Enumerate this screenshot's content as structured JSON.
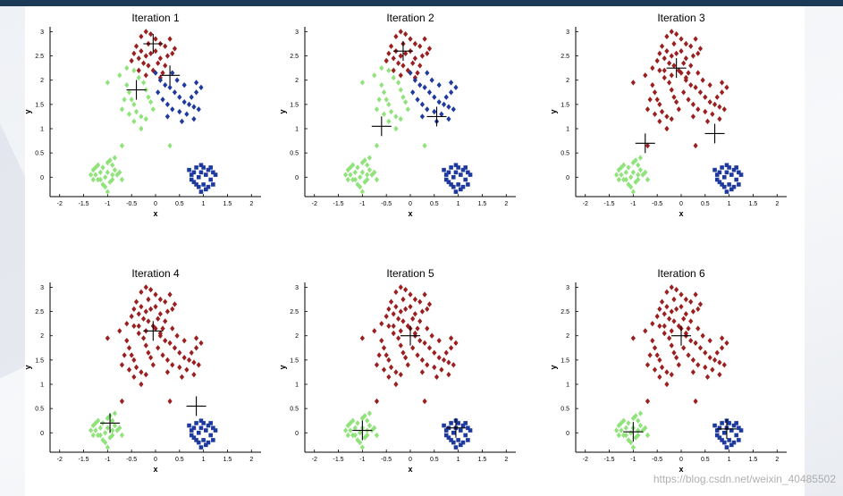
{
  "watermark": "https://blog.csdn.net/weixin_40485502",
  "colors": {
    "cluster_green": "#8fe37a",
    "cluster_red": "#9b1f1f",
    "cluster_blue": "#1e3a9e",
    "centroid": "#000000",
    "header": "#1b3a57"
  },
  "chart_data": [
    {
      "type": "scatter",
      "title": "Iteration 1",
      "xlabel": "x",
      "ylabel": "y",
      "xlim": [
        -2.2,
        2.2
      ],
      "ylim": [
        -0.4,
        3.1
      ],
      "xticks": [
        "-2",
        "-1.5",
        "-1",
        "-0.5",
        "0",
        "0.5",
        "1",
        "1.5",
        "2"
      ],
      "yticks": [
        "0",
        "0.5",
        "1",
        "1.5",
        "2",
        "2.5",
        "3"
      ],
      "assignment": {
        "lower_left": "green",
        "lower_right": "blue",
        "upper_red": "red",
        "upper_mid_green": "green",
        "upper_mid_blue": "blue"
      },
      "centroids": [
        [
          -0.05,
          2.75
        ],
        [
          0.3,
          2.1
        ],
        [
          -0.4,
          1.8
        ]
      ]
    },
    {
      "type": "scatter",
      "title": "Iteration 2",
      "xlabel": "x",
      "ylabel": "y",
      "xlim": [
        -2.2,
        2.2
      ],
      "ylim": [
        -0.4,
        3.1
      ],
      "xticks": [
        "-2",
        "-1.5",
        "-1",
        "-0.5",
        "0",
        "0.5",
        "1",
        "1.5",
        "2"
      ],
      "yticks": [
        "0",
        "0.5",
        "1",
        "1.5",
        "2",
        "2.5",
        "3"
      ],
      "assignment": {
        "lower_left": "green",
        "lower_right": "blue",
        "upper_red": "red",
        "upper_mid_green": "green",
        "upper_mid_blue": "blue"
      },
      "centroids": [
        [
          -0.15,
          2.6
        ],
        [
          0.55,
          1.25
        ],
        [
          -0.6,
          1.05
        ]
      ]
    },
    {
      "type": "scatter",
      "title": "Iteration 3",
      "xlabel": "x",
      "ylabel": "y",
      "xlim": [
        -2.2,
        2.2
      ],
      "ylim": [
        -0.4,
        3.1
      ],
      "xticks": [
        "-2",
        "-1.5",
        "-1",
        "-0.5",
        "0",
        "0.5",
        "1",
        "1.5",
        "2"
      ],
      "yticks": [
        "0",
        "0.5",
        "1",
        "1.5",
        "2",
        "2.5",
        "3"
      ],
      "assignment": {
        "lower_left": "green",
        "lower_right": "blue",
        "upper_red": "red",
        "upper_mid_green": "red",
        "upper_mid_blue": "red"
      },
      "centroids": [
        [
          -0.1,
          2.25
        ],
        [
          0.7,
          0.9
        ],
        [
          -0.75,
          0.7
        ]
      ]
    },
    {
      "type": "scatter",
      "title": "Iteration 4",
      "xlabel": "x",
      "ylabel": "y",
      "xlim": [
        -2.2,
        2.2
      ],
      "ylim": [
        -0.4,
        3.1
      ],
      "xticks": [
        "-2",
        "-1.5",
        "-1",
        "-0.5",
        "0",
        "0.5",
        "1",
        "1.5",
        "2"
      ],
      "yticks": [
        "0",
        "0.5",
        "1",
        "1.5",
        "2",
        "2.5",
        "3"
      ],
      "assignment": {
        "lower_left": "green",
        "lower_right": "blue",
        "upper_red": "red",
        "upper_mid_green": "red",
        "upper_mid_blue": "red"
      },
      "centroids": [
        [
          -0.05,
          2.1
        ],
        [
          0.85,
          0.55
        ],
        [
          -0.95,
          0.2
        ]
      ]
    },
    {
      "type": "scatter",
      "title": "Iteration 5",
      "xlabel": "x",
      "ylabel": "y",
      "xlim": [
        -2.2,
        2.2
      ],
      "ylim": [
        -0.4,
        3.1
      ],
      "xticks": [
        "-2",
        "-1.5",
        "-1",
        "-0.5",
        "0",
        "0.5",
        "1",
        "1.5",
        "2"
      ],
      "yticks": [
        "0",
        "0.5",
        "1",
        "1.5",
        "2",
        "2.5",
        "3"
      ],
      "assignment": {
        "lower_left": "green",
        "lower_right": "blue",
        "upper_red": "red",
        "upper_mid_green": "red",
        "upper_mid_blue": "red"
      },
      "centroids": [
        [
          0.0,
          2.0
        ],
        [
          0.95,
          0.1
        ],
        [
          -1.0,
          0.05
        ]
      ]
    },
    {
      "type": "scatter",
      "title": "Iteration 6",
      "xlabel": "x",
      "ylabel": "y",
      "xlim": [
        -2.2,
        2.2
      ],
      "ylim": [
        -0.4,
        3.1
      ],
      "xticks": [
        "-2",
        "-1.5",
        "-1",
        "-0.5",
        "0",
        "0.5",
        "1",
        "1.5",
        "2"
      ],
      "yticks": [
        "0",
        "0.5",
        "1",
        "1.5",
        "2",
        "2.5",
        "3"
      ],
      "assignment": {
        "lower_left": "green",
        "lower_right": "blue",
        "upper_red": "red",
        "upper_mid_green": "red",
        "upper_mid_blue": "red"
      },
      "centroids": [
        [
          0.0,
          2.0
        ],
        [
          0.95,
          0.08
        ],
        [
          -1.0,
          0.02
        ]
      ]
    }
  ],
  "points": {
    "lower_left": [
      [
        -1.3,
        0.15
      ],
      [
        -1.25,
        0.05
      ],
      [
        -1.2,
        -0.05
      ],
      [
        -1.15,
        0.1
      ],
      [
        -1.1,
        0.2
      ],
      [
        -1.05,
        0.0
      ],
      [
        -1.0,
        0.3
      ],
      [
        -0.95,
        -0.1
      ],
      [
        -0.9,
        0.05
      ],
      [
        -0.85,
        0.15
      ],
      [
        -1.2,
        0.25
      ],
      [
        -1.1,
        -0.15
      ],
      [
        -1.0,
        0.1
      ],
      [
        -0.95,
        0.35
      ],
      [
        -0.9,
        -0.05
      ],
      [
        -1.05,
        -0.2
      ],
      [
        -0.8,
        0.05
      ],
      [
        -0.75,
        0.1
      ],
      [
        -1.15,
        -0.05
      ],
      [
        -1.25,
        0.2
      ],
      [
        -1.0,
        -0.3
      ],
      [
        -0.85,
        0.4
      ],
      [
        -0.9,
        0.25
      ],
      [
        -1.3,
        -0.05
      ],
      [
        -0.7,
        -0.05
      ],
      [
        -1.35,
        0.05
      ]
    ],
    "lower_right": [
      [
        0.7,
        0.15
      ],
      [
        0.75,
        0.05
      ],
      [
        0.8,
        -0.1
      ],
      [
        0.85,
        0.2
      ],
      [
        0.9,
        0.0
      ],
      [
        0.95,
        0.1
      ],
      [
        1.0,
        -0.15
      ],
      [
        1.05,
        0.05
      ],
      [
        1.1,
        0.15
      ],
      [
        1.15,
        -0.05
      ],
      [
        1.2,
        0.1
      ],
      [
        0.8,
        0.1
      ],
      [
        0.9,
        -0.2
      ],
      [
        1.0,
        0.2
      ],
      [
        1.1,
        -0.2
      ],
      [
        1.2,
        -0.15
      ],
      [
        0.75,
        -0.05
      ],
      [
        0.95,
        -0.3
      ],
      [
        1.05,
        -0.25
      ],
      [
        1.15,
        0.2
      ],
      [
        0.85,
        -0.15
      ],
      [
        1.25,
        0.05
      ],
      [
        0.95,
        0.25
      ]
    ],
    "upper_red": [
      [
        -0.3,
        2.9
      ],
      [
        -0.2,
        3.0
      ],
      [
        -0.1,
        2.95
      ],
      [
        0.0,
        2.85
      ],
      [
        0.1,
        2.75
      ],
      [
        0.2,
        2.7
      ],
      [
        -0.4,
        2.7
      ],
      [
        -0.3,
        2.6
      ],
      [
        -0.2,
        2.5
      ],
      [
        -0.1,
        2.55
      ],
      [
        0.0,
        2.6
      ],
      [
        0.1,
        2.45
      ],
      [
        0.25,
        2.5
      ],
      [
        -0.35,
        2.45
      ],
      [
        -0.45,
        2.55
      ],
      [
        -0.25,
        2.35
      ],
      [
        -0.15,
        2.3
      ],
      [
        0.05,
        2.35
      ],
      [
        0.2,
        2.3
      ],
      [
        -0.05,
        2.2
      ],
      [
        0.15,
        2.15
      ],
      [
        0.35,
        2.55
      ],
      [
        0.3,
        2.85
      ],
      [
        -0.5,
        2.4
      ],
      [
        -0.15,
        2.75
      ],
      [
        0.4,
        2.65
      ],
      [
        -0.35,
        2.2
      ],
      [
        0.1,
        2.05
      ],
      [
        -0.2,
        2.1
      ]
    ],
    "upper_mid_green": [
      [
        -1.0,
        1.95
      ],
      [
        -0.75,
        2.1
      ],
      [
        -0.6,
        1.9
      ],
      [
        -0.55,
        1.75
      ],
      [
        -0.5,
        1.6
      ],
      [
        -0.45,
        1.5
      ],
      [
        -0.4,
        1.35
      ],
      [
        -0.3,
        1.25
      ],
      [
        -0.35,
        2.05
      ],
      [
        -0.25,
        1.95
      ],
      [
        -0.2,
        1.8
      ],
      [
        -0.15,
        1.65
      ],
      [
        -0.1,
        1.55
      ],
      [
        -0.05,
        1.4
      ],
      [
        -0.65,
        1.6
      ],
      [
        -0.7,
        1.4
      ],
      [
        -0.55,
        1.3
      ],
      [
        -0.45,
        1.15
      ],
      [
        -0.3,
        1.0
      ],
      [
        -0.2,
        1.2
      ],
      [
        -0.6,
        2.25
      ],
      [
        -0.45,
        2.2
      ],
      [
        0.3,
        0.65
      ],
      [
        -0.7,
        0.65
      ]
    ],
    "upper_mid_blue": [
      [
        0.0,
        2.15
      ],
      [
        0.1,
        2.0
      ],
      [
        0.2,
        1.9
      ],
      [
        0.3,
        1.85
      ],
      [
        0.4,
        1.75
      ],
      [
        0.5,
        1.65
      ],
      [
        0.6,
        1.55
      ],
      [
        0.7,
        1.5
      ],
      [
        0.8,
        1.45
      ],
      [
        0.9,
        1.4
      ],
      [
        0.05,
        1.75
      ],
      [
        0.15,
        1.6
      ],
      [
        0.25,
        1.5
      ],
      [
        0.35,
        1.4
      ],
      [
        0.5,
        1.35
      ],
      [
        0.65,
        1.3
      ],
      [
        0.75,
        1.65
      ],
      [
        0.85,
        1.75
      ],
      [
        0.95,
        1.85
      ],
      [
        0.6,
        1.9
      ],
      [
        0.45,
        2.0
      ],
      [
        0.35,
        2.15
      ],
      [
        0.8,
        1.2
      ],
      [
        0.55,
        1.15
      ],
      [
        0.25,
        1.25
      ],
      [
        0.85,
        1.95
      ]
    ]
  }
}
